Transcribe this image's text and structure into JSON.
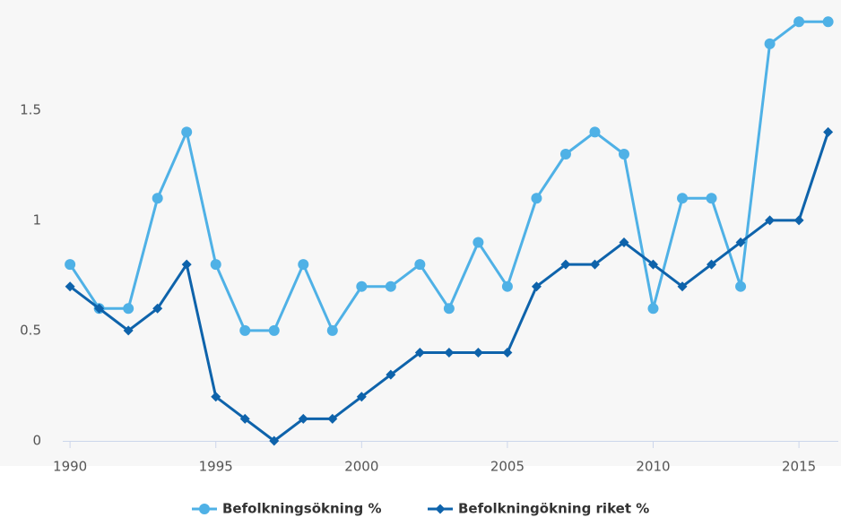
{
  "chart_data": {
    "type": "line",
    "x": [
      1990,
      1991,
      1992,
      1993,
      1994,
      1995,
      1996,
      1997,
      1998,
      1999,
      2000,
      2001,
      2002,
      2003,
      2004,
      2005,
      2006,
      2007,
      2008,
      2009,
      2010,
      2011,
      2012,
      2013,
      2014,
      2015,
      2016
    ],
    "series": [
      {
        "name": "Befolkningsökning %",
        "color": "#4fb1e6",
        "marker": "circle",
        "values": [
          0.8,
          0.6,
          0.6,
          1.1,
          1.4,
          0.8,
          0.5,
          0.5,
          0.8,
          0.5,
          0.7,
          0.7,
          0.8,
          0.6,
          0.9,
          0.7,
          1.1,
          1.3,
          1.4,
          1.3,
          0.6,
          1.1,
          1.1,
          0.7,
          1.8,
          1.9,
          1.9
        ]
      },
      {
        "name": "Befolkningökning riket %",
        "color": "#0e63ab",
        "marker": "diamond",
        "values": [
          0.7,
          0.6,
          0.5,
          0.6,
          0.8,
          0.2,
          0.1,
          0,
          0.1,
          0.1,
          0.2,
          0.3,
          0.4,
          0.4,
          0.4,
          0.4,
          0.7,
          0.8,
          0.8,
          0.9,
          0.8,
          0.7,
          0.8,
          0.9,
          1.0,
          1.0,
          1.4
        ]
      }
    ],
    "xlim": [
      1989.75,
      2016.35
    ],
    "xticks": [
      1990,
      1995,
      2000,
      2005,
      2010,
      2015
    ],
    "ylim": [
      0,
      1.95
    ],
    "yticks": [
      0,
      0.5,
      1,
      1.5
    ],
    "grid": false,
    "legend": "bottom"
  }
}
